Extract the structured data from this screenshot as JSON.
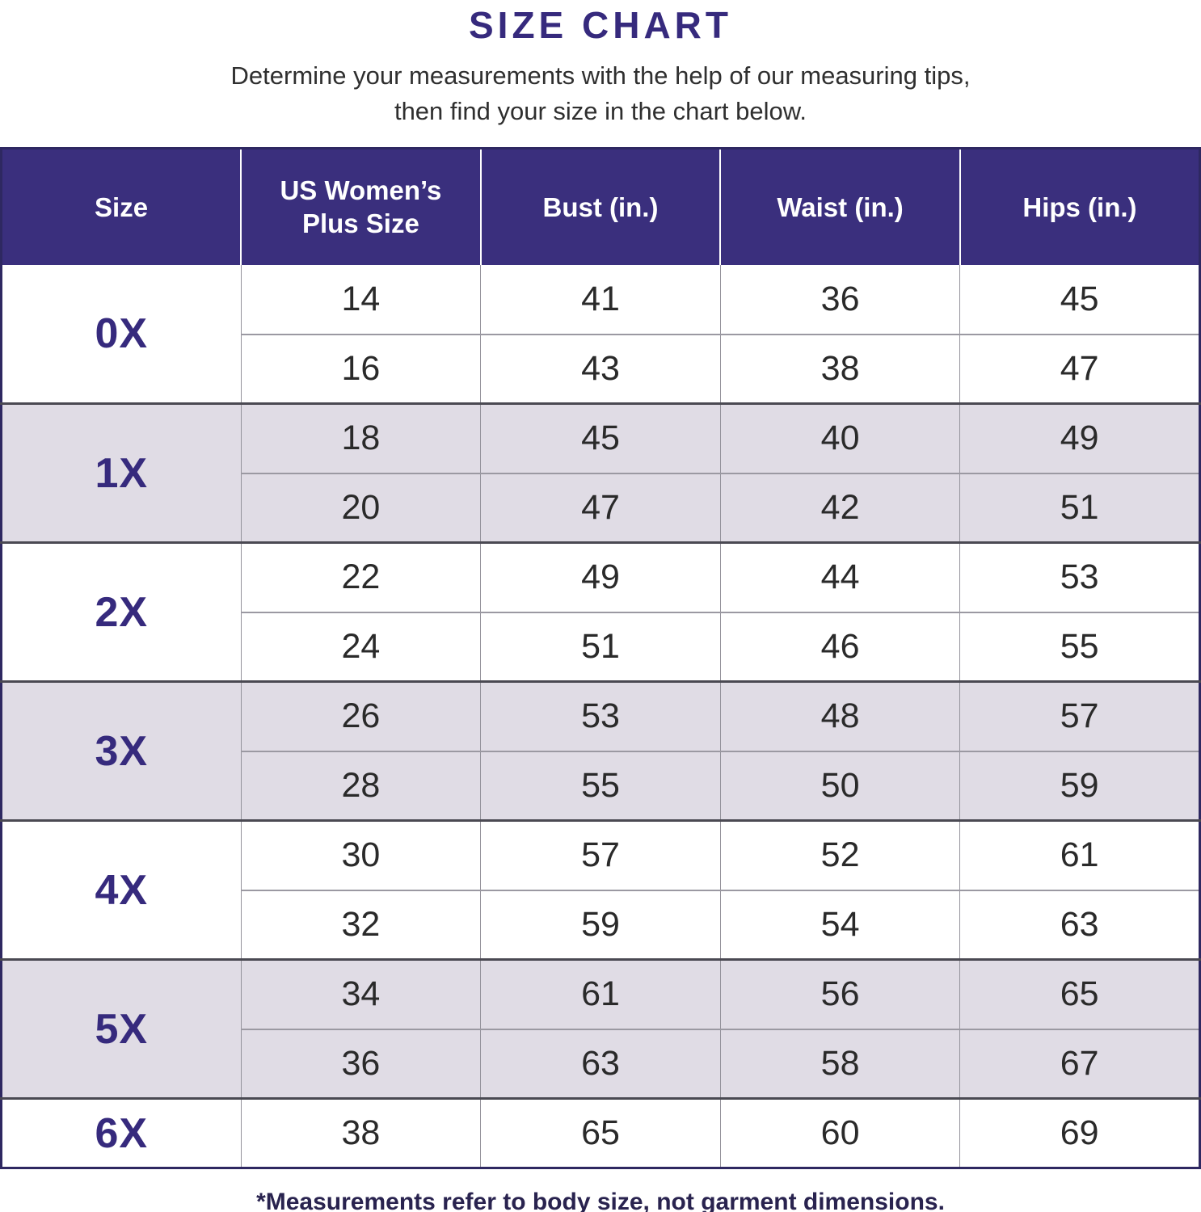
{
  "title": "SIZE CHART",
  "subtitle_line1": "Determine your measurements with the help of our measuring tips,",
  "subtitle_line2": "then find your size in the chart below.",
  "footnote": "*Measurements refer to body size, not garment dimensions.",
  "colors": {
    "accent_indigo": "#3a2f7d",
    "shaded_row": "#e0dce5",
    "data_text": "#2a2a2a",
    "outer_border": "#2e2861",
    "group_separator": "#4a4952",
    "cell_divider": "#94929b"
  },
  "chart_data": {
    "type": "table",
    "title": "SIZE CHART",
    "columns": [
      "Size",
      "US Women’s Plus Size",
      "Bust (in.)",
      "Waist (in.)",
      "Hips (in.)"
    ],
    "groups": [
      {
        "size": "0X",
        "shaded": false,
        "rows": [
          [
            14,
            41,
            36,
            45
          ],
          [
            16,
            43,
            38,
            47
          ]
        ]
      },
      {
        "size": "1X",
        "shaded": true,
        "rows": [
          [
            18,
            45,
            40,
            49
          ],
          [
            20,
            47,
            42,
            51
          ]
        ]
      },
      {
        "size": "2X",
        "shaded": false,
        "rows": [
          [
            22,
            49,
            44,
            53
          ],
          [
            24,
            51,
            46,
            55
          ]
        ]
      },
      {
        "size": "3X",
        "shaded": true,
        "rows": [
          [
            26,
            53,
            48,
            57
          ],
          [
            28,
            55,
            50,
            59
          ]
        ]
      },
      {
        "size": "4X",
        "shaded": false,
        "rows": [
          [
            30,
            57,
            52,
            61
          ],
          [
            32,
            59,
            54,
            63
          ]
        ]
      },
      {
        "size": "5X",
        "shaded": true,
        "rows": [
          [
            34,
            61,
            56,
            65
          ],
          [
            36,
            63,
            58,
            67
          ]
        ]
      },
      {
        "size": "6X",
        "shaded": false,
        "rows": [
          [
            38,
            65,
            60,
            69
          ]
        ]
      }
    ],
    "layout_hints": {
      "size_label_spans_group_rows": true,
      "alternating_group_shading": true,
      "header_background": "#3a2f7d"
    }
  }
}
